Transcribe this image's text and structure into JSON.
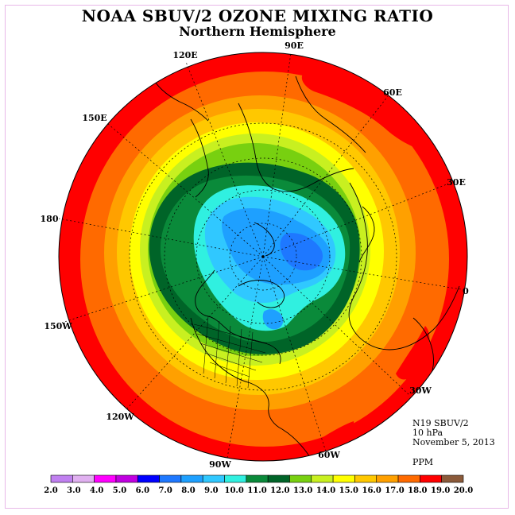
{
  "title": "NOAA SBUV/2 OZONE MIXING RATIO",
  "subtitle": "Northern Hemisphere",
  "info": {
    "instrument": "N19 SBUV/2",
    "level": "10 hPa",
    "date": "November 5, 2013",
    "units": "PPM"
  },
  "longitude_labels": [
    "90E",
    "60E",
    "30E",
    "0",
    "30W",
    "60W",
    "90W",
    "120W",
    "150W",
    "180",
    "150E",
    "120E"
  ],
  "colorbar": {
    "ticks": [
      "2.0",
      "3.0",
      "4.0",
      "5.0",
      "6.0",
      "7.0",
      "8.0",
      "9.0",
      "10.0",
      "11.0",
      "12.0",
      "13.0",
      "14.0",
      "15.0",
      "16.0",
      "17.0",
      "18.0",
      "19.0",
      "20.0"
    ],
    "colors": [
      "#c080f0",
      "#e0b0f0",
      "#ff00ff",
      "#c000e0",
      "#0000ff",
      "#1e78ff",
      "#1ea0ff",
      "#30c8ff",
      "#30f0e0",
      "#0a8a3a",
      "#006428",
      "#78d010",
      "#c8f020",
      "#ffff00",
      "#ffc800",
      "#ffa000",
      "#ff6a00",
      "#ff0000",
      "#8b5a3a"
    ]
  },
  "chart_data": {
    "type": "heatmap",
    "projection": "north-polar-stereographic",
    "variable": "Ozone mixing ratio",
    "units": "PPM",
    "level": "10 hPa",
    "date": "November 5, 2013",
    "color_levels": [
      2.0,
      3.0,
      4.0,
      5.0,
      6.0,
      7.0,
      8.0,
      9.0,
      10.0,
      11.0,
      12.0,
      13.0,
      14.0,
      15.0,
      16.0,
      17.0,
      18.0,
      19.0,
      20.0
    ],
    "legend": "bottom"
  }
}
